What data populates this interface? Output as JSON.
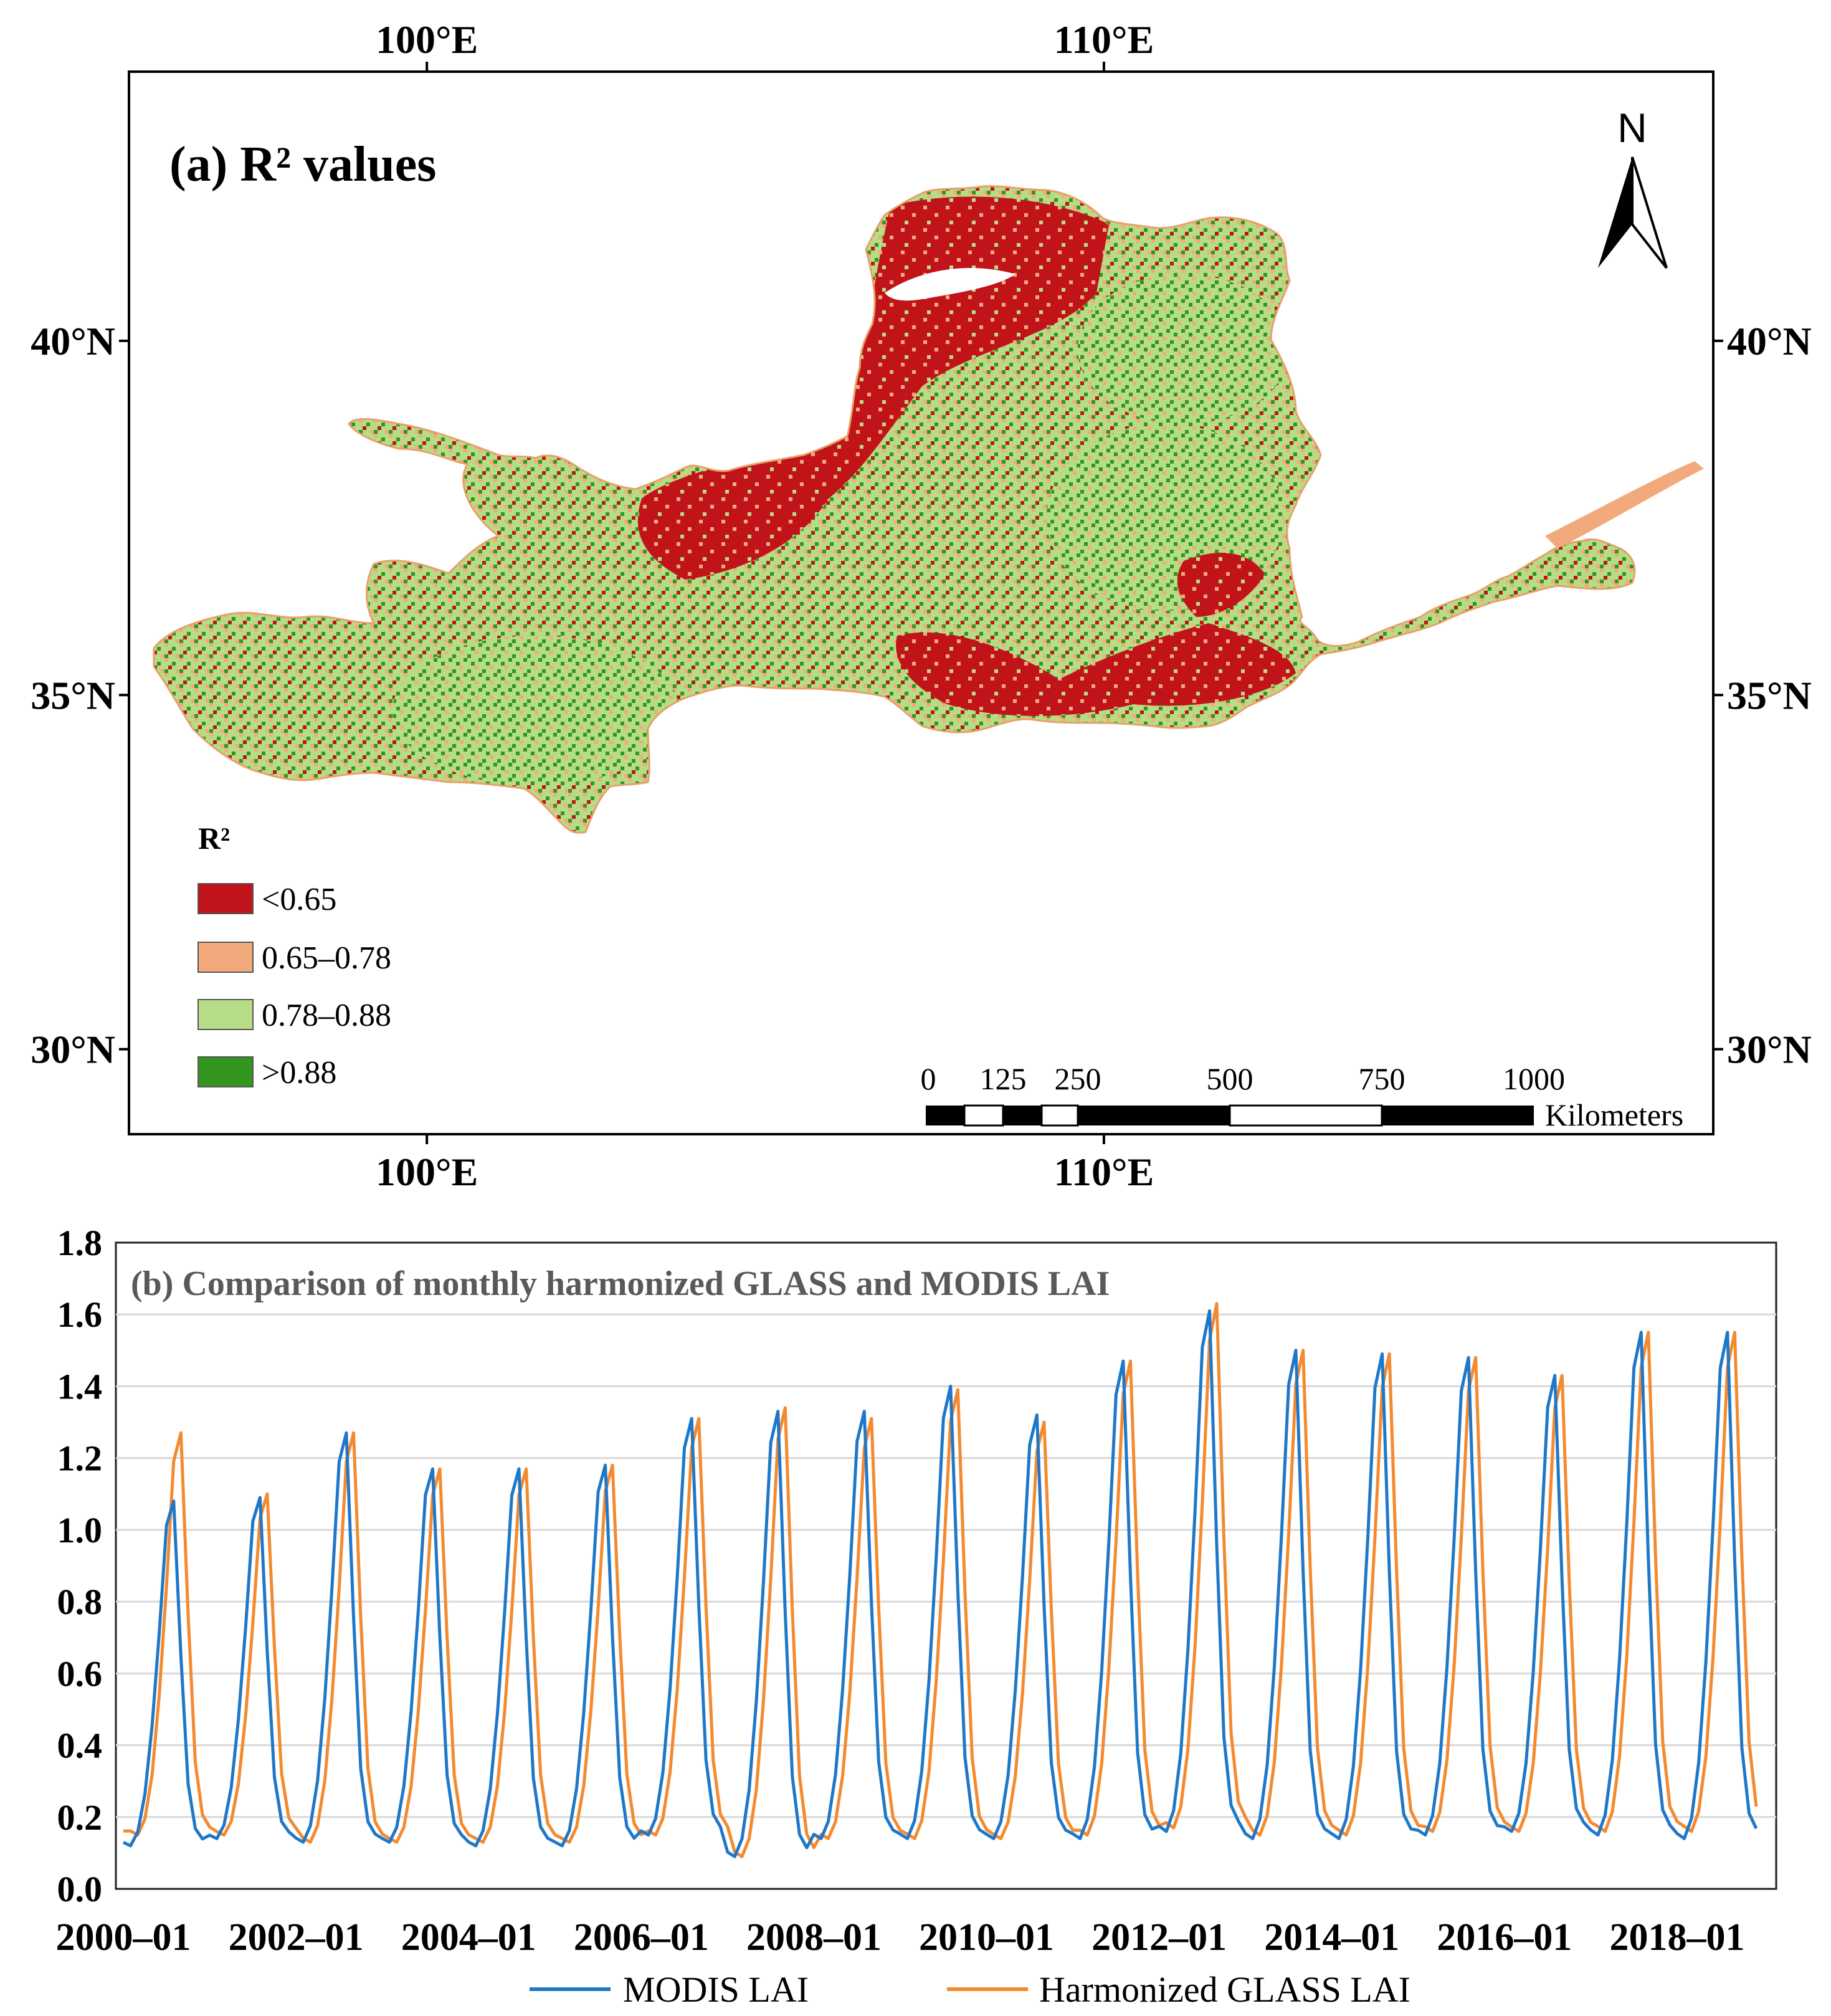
{
  "colors": {
    "r2_lt_065": "#c0141a",
    "r2_065_078": "#f2aa7c",
    "r2_078_088": "#b7dc86",
    "r2_gt_088": "#34951f",
    "modis": "#1f77c8",
    "glass": "#f48a2f",
    "grid": "#d9d9d9"
  },
  "chart_data": [
    {
      "type": "heatmap",
      "title": "(a) R² values",
      "x_ticks": [
        "100°E",
        "110°E"
      ],
      "y_ticks": [
        "40°N",
        "35°N",
        "30°N"
      ],
      "x_tick_values": [
        100,
        110
      ],
      "y_tick_values": [
        40,
        35,
        30
      ],
      "xlim": [
        95.6,
        119.0
      ],
      "ylim": [
        28.8,
        43.8
      ],
      "north_arrow": "N",
      "legend": {
        "title": "R²",
        "items": [
          {
            "label": "<0.65",
            "color": "#c0141a"
          },
          {
            "label": "0.65–0.78",
            "color": "#f2aa7c"
          },
          {
            "label": "0.78–0.88",
            "color": "#b7dc86"
          },
          {
            "label": ">0.88",
            "color": "#34951f"
          }
        ]
      },
      "scalebar": {
        "ticks": [
          "0",
          "125",
          "250",
          "500",
          "750",
          "1000"
        ],
        "unit": "Kilometers"
      }
    },
    {
      "type": "line",
      "title": "(b) Comparison of monthly harmonized GLASS and MODIS LAI",
      "ylim": [
        0.0,
        1.8
      ],
      "y_ticks": [
        "0.0",
        "0.2",
        "0.4",
        "0.6",
        "0.8",
        "1.0",
        "1.2",
        "1.4",
        "1.6",
        "1.8"
      ],
      "x_ticks": [
        "2000–01",
        "2002–01",
        "2004–01",
        "2006–01",
        "2008–01",
        "2010–01",
        "2012–01",
        "2014–01",
        "2016–01",
        "2018–01"
      ],
      "start": "2000-01",
      "months": 228,
      "series": [
        {
          "name": "MODIS LAI",
          "lag_months": 0,
          "annual_min": [
            0.12,
            0.14,
            0.13,
            0.13,
            0.12,
            0.12,
            0.15,
            0.09,
            0.14,
            0.14,
            0.14,
            0.14,
            0.16,
            0.14,
            0.14,
            0.15,
            0.16,
            0.15,
            0.14
          ],
          "annual_peak": [
            1.08,
            1.09,
            1.27,
            1.17,
            1.17,
            1.18,
            1.31,
            1.33,
            1.33,
            1.4,
            1.32,
            1.47,
            1.61,
            1.5,
            1.49,
            1.48,
            1.43,
            1.55,
            1.55
          ]
        },
        {
          "name": "Harmonized GLASS LAI",
          "lag_months": 1,
          "annual_min": [
            0.15,
            0.15,
            0.13,
            0.13,
            0.13,
            0.13,
            0.15,
            0.09,
            0.14,
            0.14,
            0.14,
            0.15,
            0.17,
            0.15,
            0.15,
            0.16,
            0.16,
            0.16,
            0.16
          ],
          "annual_peak": [
            1.27,
            1.1,
            1.27,
            1.17,
            1.17,
            1.18,
            1.31,
            1.34,
            1.31,
            1.39,
            1.3,
            1.47,
            1.63,
            1.5,
            1.49,
            1.48,
            1.43,
            1.55,
            1.55
          ]
        }
      ]
    }
  ]
}
